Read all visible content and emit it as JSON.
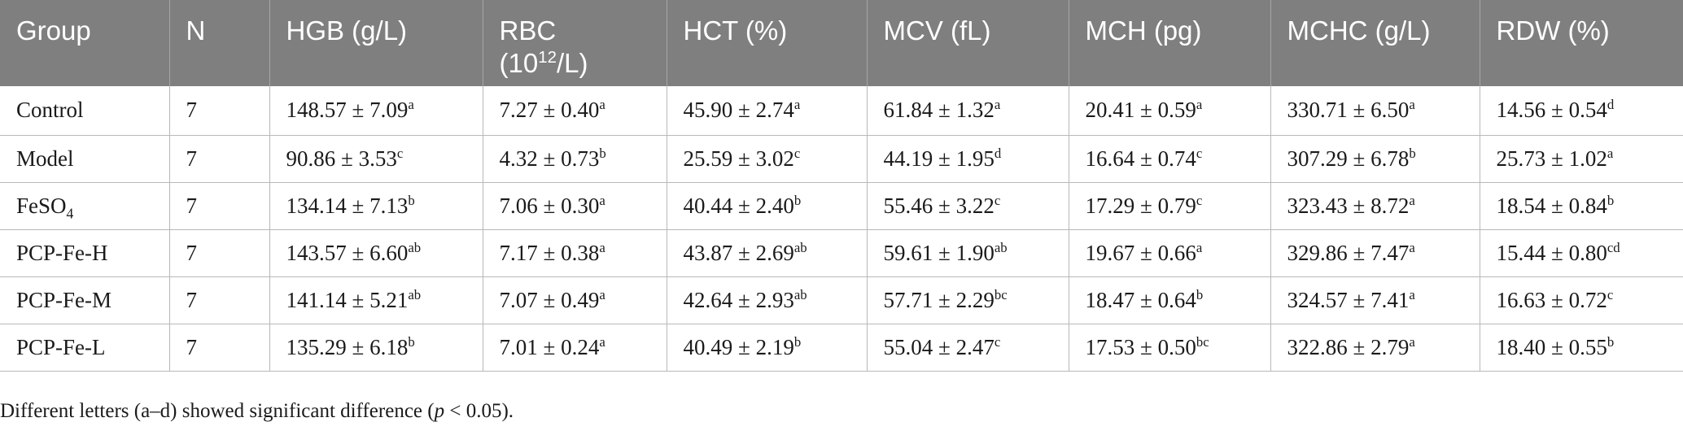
{
  "table": {
    "headers": [
      "Group",
      "N",
      "HGB (g/L)",
      "RBC (10",
      "HCT (%)",
      "MCV (fL)",
      "MCH (pg)",
      "MCHC (g/L)",
      "RDW (%)"
    ],
    "rbc_header": {
      "prefix": "RBC",
      "line2_start": "(10",
      "exponent": "12",
      "line2_end": "/L)"
    },
    "rows": [
      {
        "group": "Control",
        "group_sub": "",
        "group_after": "",
        "n": "7",
        "cells": [
          {
            "v": "148.57 ± 7.09",
            "s": "a"
          },
          {
            "v": "7.27 ± 0.40",
            "s": "a"
          },
          {
            "v": "45.90 ± 2.74",
            "s": "a"
          },
          {
            "v": "61.84 ± 1.32",
            "s": "a"
          },
          {
            "v": "20.41 ± 0.59",
            "s": "a"
          },
          {
            "v": "330.71 ± 6.50",
            "s": "a"
          },
          {
            "v": "14.56 ± 0.54",
            "s": "d"
          }
        ]
      },
      {
        "group": "Model",
        "group_sub": "",
        "group_after": "",
        "n": "7",
        "cells": [
          {
            "v": "90.86 ± 3.53",
            "s": "c"
          },
          {
            "v": "4.32 ± 0.73",
            "s": "b"
          },
          {
            "v": "25.59 ± 3.02",
            "s": "c"
          },
          {
            "v": "44.19 ± 1.95",
            "s": "d"
          },
          {
            "v": "16.64 ± 0.74",
            "s": "c"
          },
          {
            "v": "307.29 ± 6.78",
            "s": "b"
          },
          {
            "v": "25.73 ± 1.02",
            "s": "a"
          }
        ]
      },
      {
        "group": "FeSO",
        "group_sub": "4",
        "group_after": "",
        "n": "7",
        "cells": [
          {
            "v": "134.14 ± 7.13",
            "s": "b"
          },
          {
            "v": "7.06 ± 0.30",
            "s": "a"
          },
          {
            "v": "40.44 ± 2.40",
            "s": "b"
          },
          {
            "v": "55.46 ± 3.22",
            "s": "c"
          },
          {
            "v": "17.29 ± 0.79",
            "s": "c"
          },
          {
            "v": "323.43 ± 8.72",
            "s": "a"
          },
          {
            "v": "18.54 ± 0.84",
            "s": "b"
          }
        ]
      },
      {
        "group": "PCP-Fe-H",
        "group_sub": "",
        "group_after": "",
        "n": "7",
        "cells": [
          {
            "v": "143.57 ± 6.60",
            "s": "ab"
          },
          {
            "v": "7.17 ± 0.38",
            "s": "a"
          },
          {
            "v": "43.87 ± 2.69",
            "s": "ab"
          },
          {
            "v": "59.61 ± 1.90",
            "s": "ab"
          },
          {
            "v": "19.67 ± 0.66",
            "s": "a"
          },
          {
            "v": "329.86 ± 7.47",
            "s": "a"
          },
          {
            "v": "15.44 ± 0.80",
            "s": "cd"
          }
        ]
      },
      {
        "group": "PCP-Fe-M",
        "group_sub": "",
        "group_after": "",
        "n": "7",
        "cells": [
          {
            "v": "141.14 ± 5.21",
            "s": "ab"
          },
          {
            "v": "7.07 ± 0.49",
            "s": "a"
          },
          {
            "v": "42.64 ± 2.93",
            "s": "ab"
          },
          {
            "v": "57.71 ± 2.29",
            "s": "bc"
          },
          {
            "v": "18.47 ± 0.64",
            "s": "b"
          },
          {
            "v": "324.57 ± 7.41",
            "s": "a"
          },
          {
            "v": "16.63 ± 0.72",
            "s": "c"
          }
        ]
      },
      {
        "group": "PCP-Fe-L",
        "group_sub": "",
        "group_after": "",
        "n": "7",
        "cells": [
          {
            "v": "135.29 ± 6.18",
            "s": "b"
          },
          {
            "v": "7.01 ± 0.24",
            "s": "a"
          },
          {
            "v": "40.49 ± 2.19",
            "s": "b"
          },
          {
            "v": "55.04 ± 2.47",
            "s": "c"
          },
          {
            "v": "17.53 ± 0.50",
            "s": "bc"
          },
          {
            "v": "322.86 ± 2.79",
            "s": "a"
          },
          {
            "v": "18.40 ± 0.55",
            "s": "b"
          }
        ]
      }
    ]
  },
  "footnote": {
    "before": "Different letters (a–d) showed significant difference (",
    "italic": "p",
    "after": " < 0.05)."
  },
  "colors": {
    "header_bg": "#7f7f7f",
    "header_text": "#ffffff",
    "grid_line": "#b8b8b8"
  }
}
